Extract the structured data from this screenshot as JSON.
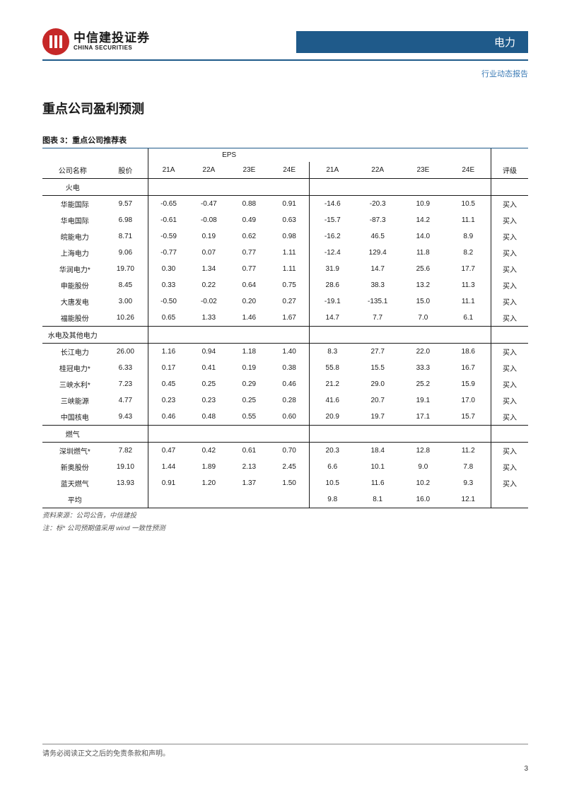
{
  "brand": {
    "logo_cn": "中信建投证券",
    "logo_en": "CHINA SECURITIES",
    "logo_bg": "#c62828",
    "logo_fg": "#ffffff"
  },
  "header": {
    "sector": "电力",
    "report_type": "行业动态报告",
    "sector_bg": "#1f5a8a",
    "sector_fg": "#ffffff"
  },
  "section_title": "重点公司盈利预测",
  "chart_title": "图表 3：重点公司推荐表",
  "table": {
    "columns": {
      "name": "公司名称",
      "price": "股价",
      "eps_group": "EPS",
      "eps": [
        "21A",
        "22A",
        "23E",
        "24E"
      ],
      "pe": [
        "21A",
        "22A",
        "23E",
        "24E"
      ],
      "rating": "评级"
    },
    "groups": [
      {
        "label": "火电",
        "rows": [
          {
            "name": "华能国际",
            "price": "9.57",
            "eps": [
              "-0.65",
              "-0.47",
              "0.88",
              "0.91"
            ],
            "pe": [
              "-14.6",
              "-20.3",
              "10.9",
              "10.5"
            ],
            "rating": "买入"
          },
          {
            "name": "华电国际",
            "price": "6.98",
            "eps": [
              "-0.61",
              "-0.08",
              "0.49",
              "0.63"
            ],
            "pe": [
              "-15.7",
              "-87.3",
              "14.2",
              "11.1"
            ],
            "rating": "买入"
          },
          {
            "name": "皖能电力",
            "price": "8.71",
            "eps": [
              "-0.59",
              "0.19",
              "0.62",
              "0.98"
            ],
            "pe": [
              "-16.2",
              "46.5",
              "14.0",
              "8.9"
            ],
            "rating": "买入"
          },
          {
            "name": "上海电力",
            "price": "9.06",
            "eps": [
              "-0.77",
              "0.07",
              "0.77",
              "1.11"
            ],
            "pe": [
              "-12.4",
              "129.4",
              "11.8",
              "8.2"
            ],
            "rating": "买入"
          },
          {
            "name": "华润电力*",
            "price": "19.70",
            "eps": [
              "0.30",
              "1.34",
              "0.77",
              "1.11"
            ],
            "pe": [
              "31.9",
              "14.7",
              "25.6",
              "17.7"
            ],
            "rating": "买入"
          },
          {
            "name": "申能股份",
            "price": "8.45",
            "eps": [
              "0.33",
              "0.22",
              "0.64",
              "0.75"
            ],
            "pe": [
              "28.6",
              "38.3",
              "13.2",
              "11.3"
            ],
            "rating": "买入"
          },
          {
            "name": "大唐发电",
            "price": "3.00",
            "eps": [
              "-0.50",
              "-0.02",
              "0.20",
              "0.27"
            ],
            "pe": [
              "-19.1",
              "-135.1",
              "15.0",
              "11.1"
            ],
            "rating": "买入"
          },
          {
            "name": "福能股份",
            "price": "10.26",
            "eps": [
              "0.65",
              "1.33",
              "1.46",
              "1.67"
            ],
            "pe": [
              "14.7",
              "7.7",
              "7.0",
              "6.1"
            ],
            "rating": "买入"
          }
        ]
      },
      {
        "label": "水电及其他电力",
        "rows": [
          {
            "name": "长江电力",
            "price": "26.00",
            "eps": [
              "1.16",
              "0.94",
              "1.18",
              "1.40"
            ],
            "pe": [
              "8.3",
              "27.7",
              "22.0",
              "18.6"
            ],
            "rating": "买入"
          },
          {
            "name": "桂冠电力*",
            "price": "6.33",
            "eps": [
              "0.17",
              "0.41",
              "0.19",
              "0.38"
            ],
            "pe": [
              "55.8",
              "15.5",
              "33.3",
              "16.7"
            ],
            "rating": "买入"
          },
          {
            "name": "三峡水利*",
            "price": "7.23",
            "eps": [
              "0.45",
              "0.25",
              "0.29",
              "0.46"
            ],
            "pe": [
              "21.2",
              "29.0",
              "25.2",
              "15.9"
            ],
            "rating": "买入"
          },
          {
            "name": "三峡能源",
            "price": "4.77",
            "eps": [
              "0.23",
              "0.23",
              "0.25",
              "0.28"
            ],
            "pe": [
              "41.6",
              "20.7",
              "19.1",
              "17.0"
            ],
            "rating": "买入"
          },
          {
            "name": "中国核电",
            "price": "9.43",
            "eps": [
              "0.46",
              "0.48",
              "0.55",
              "0.60"
            ],
            "pe": [
              "20.9",
              "19.7",
              "17.1",
              "15.7"
            ],
            "rating": "买入"
          }
        ]
      },
      {
        "label": "燃气",
        "rows": [
          {
            "name": "深圳燃气*",
            "price": "7.82",
            "eps": [
              "0.47",
              "0.42",
              "0.61",
              "0.70"
            ],
            "pe": [
              "20.3",
              "18.4",
              "12.8",
              "11.2"
            ],
            "rating": "买入"
          },
          {
            "name": "新奥股份",
            "price": "19.10",
            "eps": [
              "1.44",
              "1.89",
              "2.13",
              "2.45"
            ],
            "pe": [
              "6.6",
              "10.1",
              "9.0",
              "7.8"
            ],
            "rating": "买入"
          },
          {
            "name": "蓝天燃气",
            "price": "13.93",
            "eps": [
              "0.91",
              "1.20",
              "1.37",
              "1.50"
            ],
            "pe": [
              "10.5",
              "11.6",
              "10.2",
              "9.3"
            ],
            "rating": "买入"
          }
        ]
      }
    ],
    "average": {
      "label": "平均",
      "pe": [
        "9.8",
        "8.1",
        "16.0",
        "12.1"
      ]
    }
  },
  "source_note_1": "资料来源：公司公告，中信建投",
  "source_note_2": "注：标* 公司预期值采用 wind 一致性预测",
  "footer": {
    "disclaimer": "请务必阅读正文之后的免责条款和声明。",
    "page_number": "3"
  }
}
